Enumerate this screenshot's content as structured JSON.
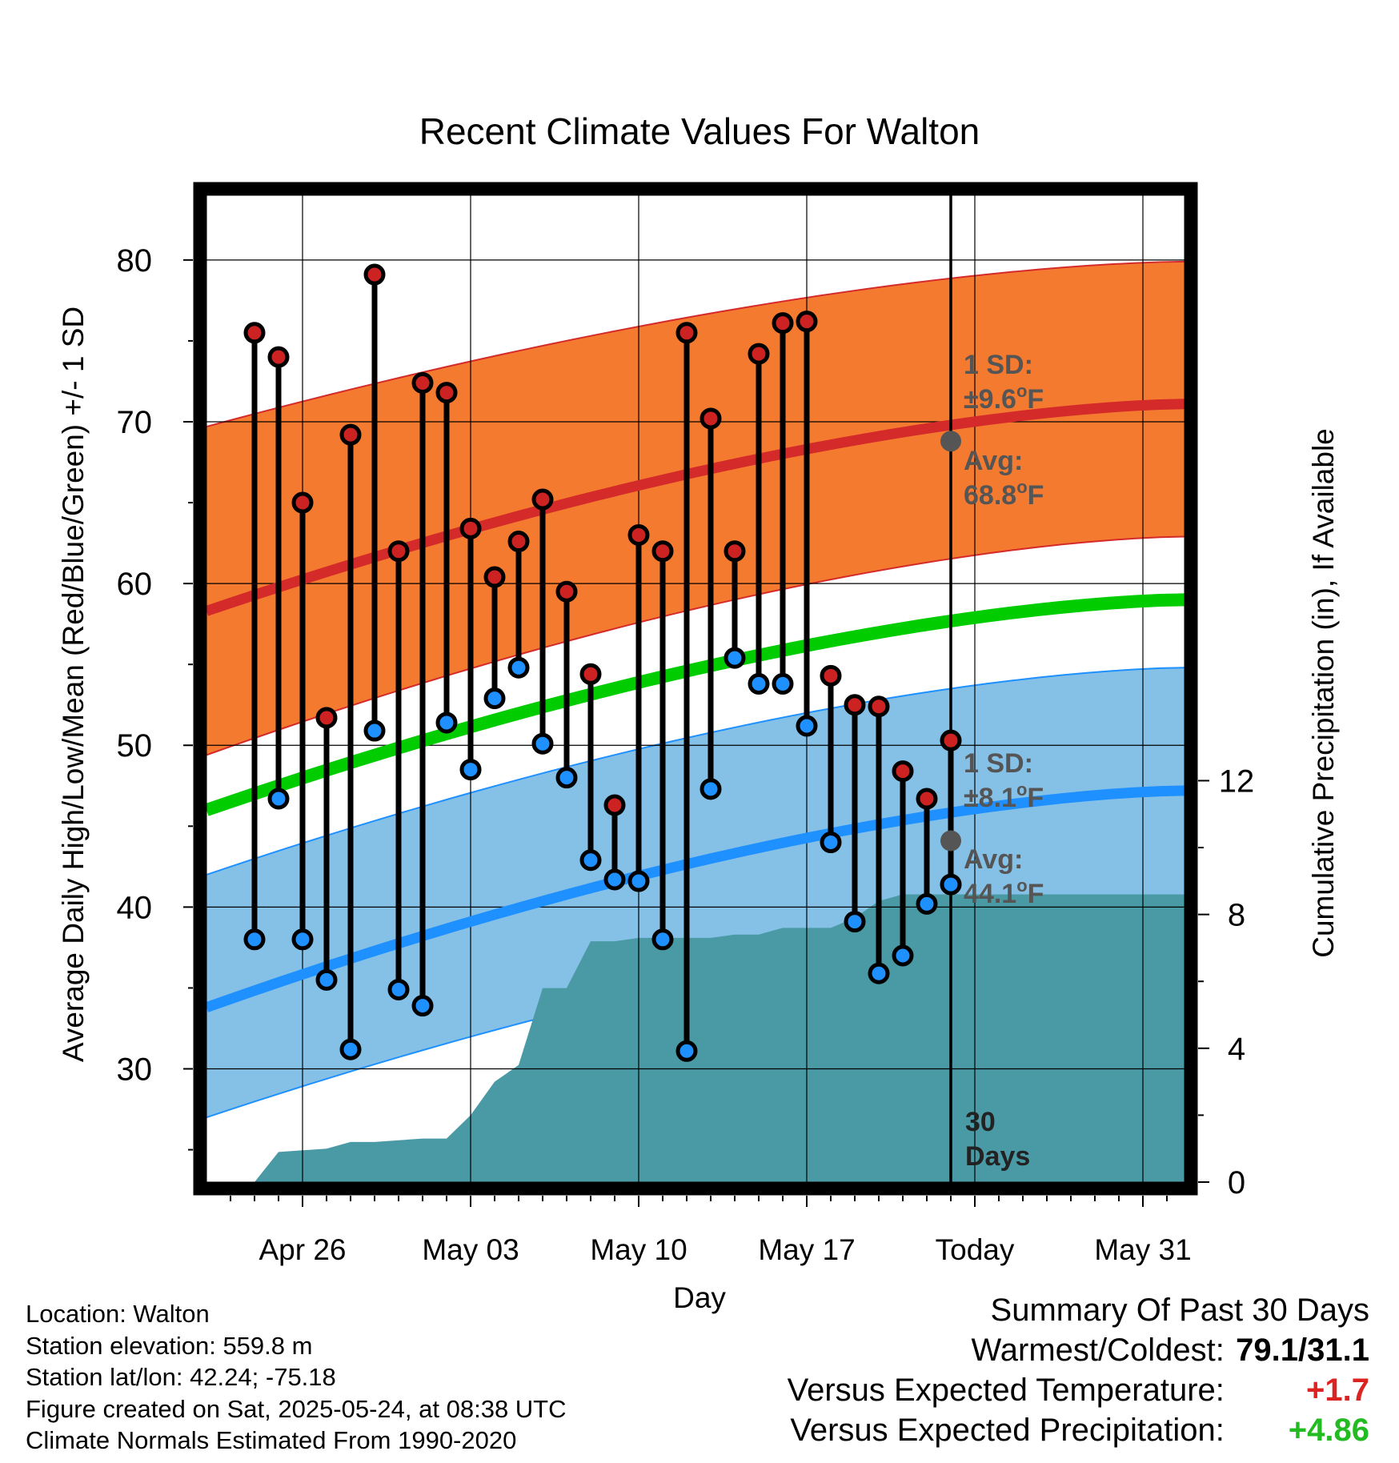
{
  "chart_data": {
    "type": "line",
    "title": "Recent Climate Values For Walton",
    "xlabel": "Day",
    "ylabel": "Average Daily High/Low/Mean (Red/Blue/Green) +/- 1 SD",
    "y2label": "Cumulative Precipitation (in), If Available",
    "x_ticks": [
      "Apr 26",
      "May 03",
      "May 10",
      "May 17",
      "Today",
      "May 31"
    ],
    "ylim": [
      23,
      84
    ],
    "y_ticks": [
      30,
      40,
      50,
      60,
      70,
      80
    ],
    "y2lim": [
      0,
      29.5
    ],
    "y2_ticks": [
      0,
      4,
      8,
      12
    ],
    "x_days": [
      "Apr 24",
      "Apr 25",
      "Apr 26",
      "Apr 27",
      "Apr 28",
      "Apr 29",
      "Apr 30",
      "May 01",
      "May 02",
      "May 03",
      "May 04",
      "May 05",
      "May 06",
      "May 07",
      "May 08",
      "May 09",
      "May 10",
      "May 11",
      "May 12",
      "May 13",
      "May 14",
      "May 15",
      "May 16",
      "May 17",
      "May 18",
      "May 19",
      "May 20",
      "May 21",
      "May 22",
      "May 23"
    ],
    "series": [
      {
        "name": "High",
        "color": "#cc2222",
        "values": [
          75.5,
          74.0,
          65.0,
          51.7,
          69.2,
          79.1,
          62.0,
          72.4,
          71.8,
          63.4,
          60.4,
          62.6,
          65.2,
          59.5,
          54.4,
          46.3,
          63.0,
          62.0,
          75.5,
          70.2,
          62.0,
          74.2,
          76.1,
          76.2,
          54.3,
          52.5,
          52.4,
          48.4,
          46.7,
          50.3
        ]
      },
      {
        "name": "Low",
        "color": "#1e90ff",
        "values": [
          38.0,
          46.7,
          38.0,
          35.5,
          31.2,
          50.9,
          34.9,
          33.9,
          51.4,
          48.5,
          52.9,
          54.8,
          50.1,
          48.0,
          42.9,
          41.7,
          41.6,
          38.0,
          31.1,
          47.3,
          55.4,
          53.8,
          53.8,
          51.2,
          44.0,
          39.1,
          35.9,
          37.0,
          40.2,
          41.4
        ]
      },
      {
        "name": "Cumulative Precipitation",
        "axis": "right",
        "color": "#4a9aa5",
        "values": [
          0.0,
          0.9,
          0.95,
          1.0,
          1.2,
          1.2,
          1.25,
          1.3,
          1.3,
          2.0,
          3.0,
          3.5,
          5.8,
          5.8,
          7.2,
          7.2,
          7.3,
          7.3,
          7.3,
          7.3,
          7.4,
          7.4,
          7.6,
          7.6,
          7.6,
          7.9,
          8.4,
          8.6,
          8.6,
          8.6
        ]
      }
    ],
    "normals": {
      "high_avg": [
        58.3,
        71.1
      ],
      "high_sd_band": {
        "lower": [
          49.4,
          62.9
        ],
        "upper": [
          69.7,
          79.9
        ]
      },
      "mean": [
        46.0,
        59.0
      ],
      "low_avg": [
        33.8,
        47.2
      ],
      "low_sd_band": {
        "lower": [
          27.0,
          39.6
        ],
        "upper": [
          42.0,
          54.8
        ]
      },
      "colors": {
        "high_band": "#f47a30",
        "high_avg": "#d42a2a",
        "mean": "#00cc00",
        "low_band": "#85c1e6",
        "low_avg": "#1e90ff",
        "precip": "#4a9aa5"
      }
    },
    "today_annotations": {
      "high_sd": "1 SD:",
      "high_sd_value": "±9.6°F",
      "high_avg": "Avg:",
      "high_avg_value": "68.8°F",
      "low_sd": "1 SD:",
      "low_sd_value": "±8.1°F",
      "low_avg": "Avg:",
      "low_avg_value": "44.1°F",
      "period_value": "30",
      "period_unit": "Days"
    }
  },
  "info": {
    "location": "Location: Walton",
    "elevation": "Station elevation: 559.8 m",
    "latlon": "Station lat/lon: 42.24; -75.18",
    "created": "Figure created on Sat, 2025-05-24, at 08:38 UTC",
    "normals": "Climate Normals Estimated From 1990-2020"
  },
  "summary": {
    "heading": "Summary Of Past 30 Days",
    "warm_cold_label": "Warmest/Coldest:",
    "warm_cold_value": "79.1/31.1",
    "temp_label": "Versus Expected Temperature:",
    "temp_value": "+1.7",
    "precip_label": "Versus Expected Precipitation:",
    "precip_value": "+4.86",
    "temp_color": "#dd2222",
    "precip_color": "#22bb22"
  }
}
